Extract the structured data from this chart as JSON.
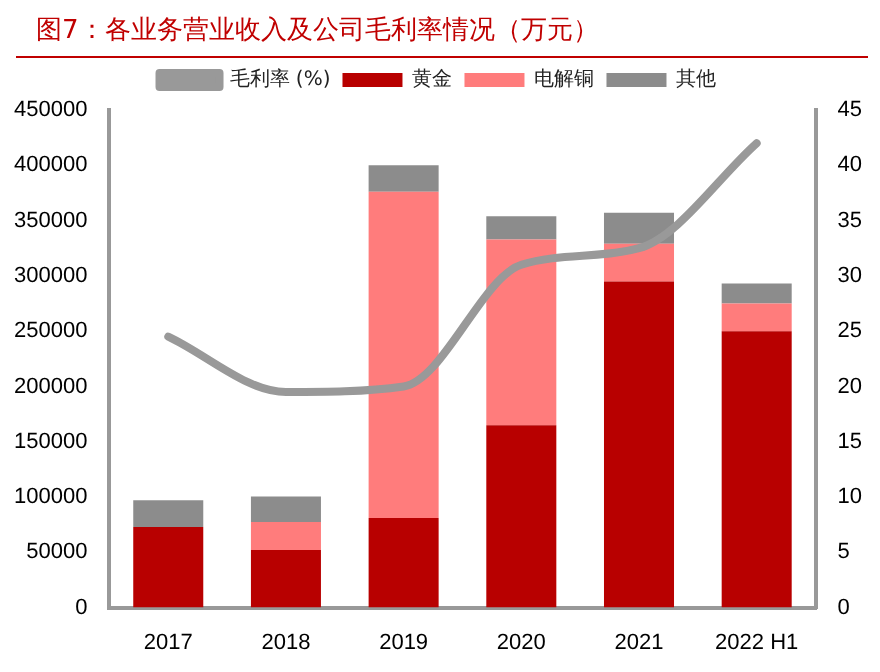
{
  "chart_data": {
    "type": "bar",
    "title": "图7：各业务营业收入及公司毛利率情况（万元）",
    "categories": [
      "2017",
      "2018",
      "2019",
      "2020",
      "2021",
      "2022 H1"
    ],
    "series": [
      {
        "name": "黄金",
        "color": "#b80000",
        "values": [
          73000,
          52000,
          81000,
          165000,
          295000,
          250000
        ]
      },
      {
        "name": "电解铜",
        "color": "#ff7c7c",
        "values": [
          null,
          25500,
          295000,
          168000,
          34000,
          25000
        ]
      },
      {
        "name": "其他",
        "color": "#8c8c8c",
        "values": [
          24000,
          23000,
          24000,
          21000,
          28000,
          18000
        ]
      },
      {
        "name": "毛利率 (%)",
        "type": "line",
        "axis": "y2",
        "color": "#999999",
        "values": [
          24.5,
          19.5,
          20,
          31,
          32.5,
          42
        ]
      }
    ],
    "stacked": true,
    "ylim": [
      0,
      450000
    ],
    "yticks": [
      0,
      50000,
      100000,
      150000,
      200000,
      250000,
      300000,
      350000,
      400000,
      450000
    ],
    "y2lim": [
      0,
      45
    ],
    "y2ticks": [
      0,
      5,
      10,
      15,
      20,
      25,
      30,
      35,
      40,
      45
    ],
    "grid": false,
    "legend": "top",
    "marker": "none",
    "line_style": "solid"
  }
}
